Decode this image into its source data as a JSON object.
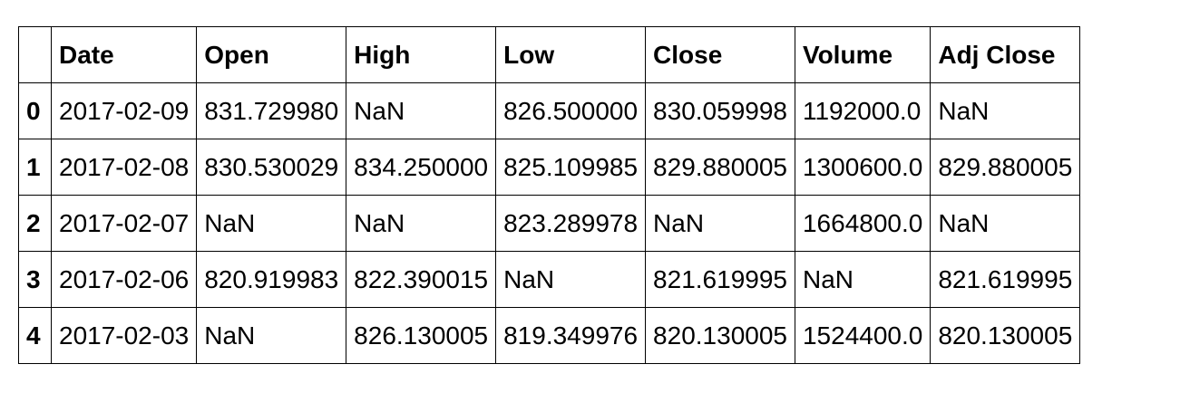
{
  "table": {
    "columns": [
      "Date",
      "Open",
      "High",
      "Low",
      "Close",
      "Volume",
      "Adj Close"
    ],
    "rows": [
      {
        "index": "0",
        "cells": [
          "2017-02-09",
          "831.729980",
          "NaN",
          "826.500000",
          "830.059998",
          "1192000.0",
          "NaN"
        ]
      },
      {
        "index": "1",
        "cells": [
          "2017-02-08",
          "830.530029",
          "834.250000",
          "825.109985",
          "829.880005",
          "1300600.0",
          "829.880005"
        ]
      },
      {
        "index": "2",
        "cells": [
          "2017-02-07",
          "NaN",
          "NaN",
          "823.289978",
          "NaN",
          "1664800.0",
          "NaN"
        ]
      },
      {
        "index": "3",
        "cells": [
          "2017-02-06",
          "820.919983",
          "822.390015",
          "NaN",
          "821.619995",
          "NaN",
          "821.619995"
        ]
      },
      {
        "index": "4",
        "cells": [
          "2017-02-03",
          "NaN",
          "826.130005",
          "819.349976",
          "820.130005",
          "1524400.0",
          "820.130005"
        ]
      }
    ]
  }
}
